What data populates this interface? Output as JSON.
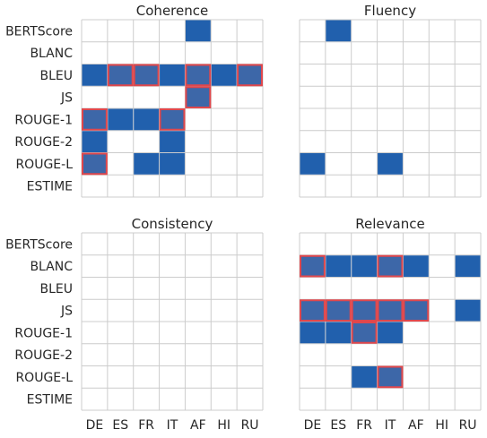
{
  "chart_data": [
    {
      "type": "heatmap",
      "title": "Coherence",
      "x": [
        "DE",
        "ES",
        "FR",
        "IT",
        "AF",
        "HI",
        "RU"
      ],
      "y": [
        "BERTScore",
        "BLANC",
        "BLEU",
        "JS",
        "ROUGE-1",
        "ROUGE-2",
        "ROUGE-L",
        "ESTIME"
      ],
      "cells": [
        [
          0,
          4
        ],
        [
          2,
          0
        ],
        [
          2,
          1
        ],
        [
          2,
          2
        ],
        [
          2,
          3
        ],
        [
          2,
          4
        ],
        [
          2,
          5
        ],
        [
          2,
          6
        ],
        [
          3,
          4
        ],
        [
          4,
          0
        ],
        [
          4,
          1
        ],
        [
          4,
          2
        ],
        [
          4,
          3
        ],
        [
          5,
          0
        ],
        [
          5,
          3
        ],
        [
          6,
          0
        ],
        [
          6,
          2
        ],
        [
          6,
          3
        ]
      ],
      "highlighted": [
        [
          2,
          1
        ],
        [
          2,
          2
        ],
        [
          2,
          4
        ],
        [
          2,
          6
        ],
        [
          3,
          4
        ],
        [
          4,
          0
        ],
        [
          4,
          3
        ],
        [
          6,
          0
        ]
      ],
      "fill_color": "#2160ad",
      "highlight_color": "#e0474c",
      "show_x_ticks": false,
      "show_y_ticks": true,
      "grid": true
    },
    {
      "type": "heatmap",
      "title": "Fluency",
      "x": [
        "DE",
        "ES",
        "FR",
        "IT",
        "AF",
        "HI",
        "RU"
      ],
      "y": [
        "BERTScore",
        "BLANC",
        "BLEU",
        "JS",
        "ROUGE-1",
        "ROUGE-2",
        "ROUGE-L",
        "ESTIME"
      ],
      "cells": [
        [
          0,
          1
        ],
        [
          6,
          0
        ],
        [
          6,
          3
        ]
      ],
      "highlighted": [],
      "fill_color": "#2160ad",
      "highlight_color": "#e0474c",
      "show_x_ticks": false,
      "show_y_ticks": false,
      "grid": true
    },
    {
      "type": "heatmap",
      "title": "Consistency",
      "x": [
        "DE",
        "ES",
        "FR",
        "IT",
        "AF",
        "HI",
        "RU"
      ],
      "y": [
        "BERTScore",
        "BLANC",
        "BLEU",
        "JS",
        "ROUGE-1",
        "ROUGE-2",
        "ROUGE-L",
        "ESTIME"
      ],
      "cells": [],
      "highlighted": [],
      "fill_color": "#2160ad",
      "highlight_color": "#e0474c",
      "show_x_ticks": true,
      "show_y_ticks": true,
      "grid": true
    },
    {
      "type": "heatmap",
      "title": "Relevance",
      "x": [
        "DE",
        "ES",
        "FR",
        "IT",
        "AF",
        "HI",
        "RU"
      ],
      "y": [
        "BERTScore",
        "BLANC",
        "BLEU",
        "JS",
        "ROUGE-1",
        "ROUGE-2",
        "ROUGE-L",
        "ESTIME"
      ],
      "cells": [
        [
          1,
          0
        ],
        [
          1,
          1
        ],
        [
          1,
          2
        ],
        [
          1,
          3
        ],
        [
          1,
          4
        ],
        [
          1,
          6
        ],
        [
          3,
          0
        ],
        [
          3,
          1
        ],
        [
          3,
          2
        ],
        [
          3,
          3
        ],
        [
          3,
          4
        ],
        [
          3,
          6
        ],
        [
          4,
          0
        ],
        [
          4,
          1
        ],
        [
          4,
          2
        ],
        [
          4,
          3
        ],
        [
          6,
          2
        ],
        [
          6,
          3
        ]
      ],
      "highlighted": [
        [
          1,
          0
        ],
        [
          1,
          3
        ],
        [
          3,
          0
        ],
        [
          3,
          1
        ],
        [
          3,
          2
        ],
        [
          3,
          3
        ],
        [
          3,
          4
        ],
        [
          4,
          2
        ],
        [
          6,
          3
        ]
      ],
      "fill_color": "#2160ad",
      "highlight_color": "#e0474c",
      "show_x_ticks": true,
      "show_y_ticks": false,
      "grid": true
    }
  ]
}
